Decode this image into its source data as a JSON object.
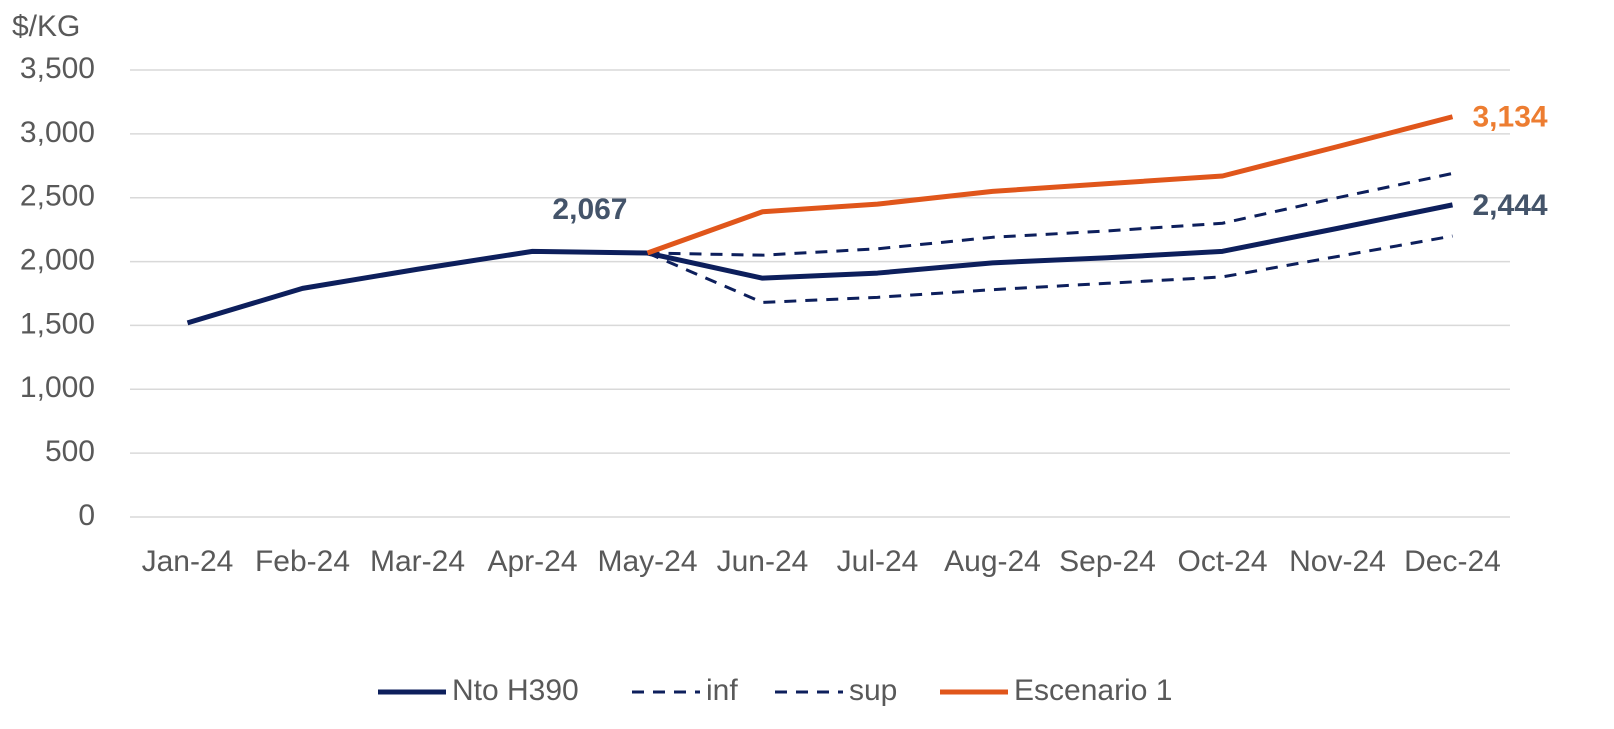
{
  "chart_data": {
    "type": "line",
    "y_label": "$/KG",
    "categories": [
      "Jan-24",
      "Feb-24",
      "Mar-24",
      "Apr-24",
      "May-24",
      "Jun-24",
      "Jul-24",
      "Aug-24",
      "Sep-24",
      "Oct-24",
      "Nov-24",
      "Dec-24"
    ],
    "series": [
      {
        "name": "Nto H390",
        "color": "#0d1f5c",
        "dash": false,
        "label_color": "#44546a",
        "values": [
          1520,
          1790,
          1940,
          2080,
          2067,
          1870,
          1910,
          1990,
          2030,
          2080,
          2260,
          2444
        ],
        "value_labels": [
          null,
          null,
          null,
          null,
          "2,067",
          null,
          null,
          null,
          null,
          null,
          null,
          "2,444"
        ]
      },
      {
        "name": "inf",
        "color": "#0d1f5c",
        "dash": true,
        "values": [
          null,
          null,
          null,
          null,
          2067,
          1680,
          1720,
          1780,
          1830,
          1880,
          2040,
          2200
        ]
      },
      {
        "name": "sup",
        "color": "#0d1f5c",
        "dash": true,
        "values": [
          null,
          null,
          null,
          null,
          2067,
          2050,
          2100,
          2190,
          2240,
          2300,
          2500,
          2690
        ]
      },
      {
        "name": "Escenario 1",
        "color": "#e0561b",
        "dash": false,
        "label_color": "#ed7d31",
        "values": [
          null,
          null,
          null,
          null,
          2067,
          2390,
          2450,
          2550,
          2610,
          2670,
          2900,
          3134
        ],
        "value_labels": [
          null,
          null,
          null,
          null,
          null,
          null,
          null,
          null,
          null,
          null,
          null,
          "3,134"
        ]
      }
    ],
    "ylim": [
      0,
      3500
    ],
    "yticks": [
      0,
      500,
      {
        "value": 1000,
        "label": "1,000"
      },
      {
        "value": 1500,
        "label": "1,500"
      },
      {
        "value": 2000,
        "label": "2,000"
      },
      {
        "value": 2500,
        "label": "2,500"
      },
      {
        "value": 3000,
        "label": "3,000"
      },
      {
        "value": 3500,
        "label": "3,500"
      }
    ],
    "grid": true,
    "legend": "bottom"
  }
}
